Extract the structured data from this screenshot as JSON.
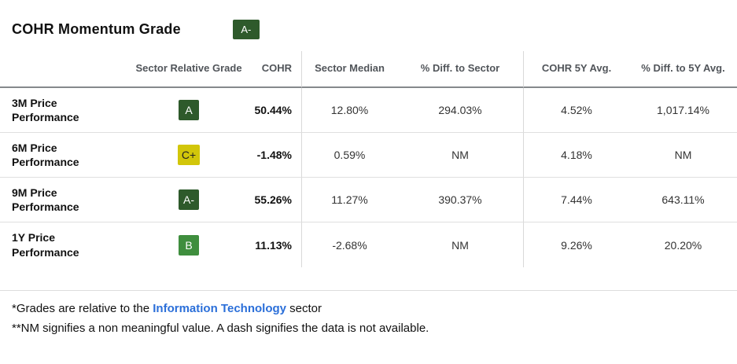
{
  "header": {
    "title": "COHR Momentum Grade",
    "overall_grade": "A-",
    "overall_grade_style": "background:#2e5a2b;color:#ffffff"
  },
  "table": {
    "headers": {
      "sector_relative_grade": "Sector Relative Grade",
      "cohr": "COHR",
      "sector_median": "Sector Median",
      "diff_to_sector": "% Diff. to Sector",
      "cohr_5y_avg": "COHR 5Y Avg.",
      "diff_to_5y_avg": "% Diff. to 5Y Avg."
    },
    "rows": [
      {
        "label": "3M Price Performance",
        "grade": "A",
        "grade_style": "background:#2e5a2b;color:#ffffff",
        "cohr": "50.44%",
        "sector_median": "12.80%",
        "diff_to_sector": "294.03%",
        "cohr_5y_avg": "4.52%",
        "diff_to_5y_avg": "1,017.14%"
      },
      {
        "label": "6M Price Performance",
        "grade": "C+",
        "grade_style": "background:#d2c60a;color:#222222",
        "cohr": "-1.48%",
        "sector_median": "0.59%",
        "diff_to_sector": "NM",
        "cohr_5y_avg": "4.18%",
        "diff_to_5y_avg": "NM"
      },
      {
        "label": "9M Price Performance",
        "grade": "A-",
        "grade_style": "background:#2e5a2b;color:#ffffff",
        "cohr": "55.26%",
        "sector_median": "11.27%",
        "diff_to_sector": "390.37%",
        "cohr_5y_avg": "7.44%",
        "diff_to_5y_avg": "643.11%"
      },
      {
        "label": "1Y Price Performance",
        "grade": "B",
        "grade_style": "background:#3f8e3e;color:#ffffff",
        "cohr": "11.13%",
        "sector_median": "-2.68%",
        "diff_to_sector": "NM",
        "cohr_5y_avg": "9.26%",
        "diff_to_5y_avg": "20.20%"
      }
    ]
  },
  "footnotes": {
    "line1_prefix": "*Grades are relative to the ",
    "line1_link": "Information Technology",
    "line1_suffix": " sector",
    "line2": "**NM signifies a non meaningful value. A dash signifies the data is not available."
  },
  "colors": {
    "grade_a_bg": "#2e5a2b",
    "grade_b_bg": "#3f8e3e",
    "grade_c_bg": "#d2c60a",
    "link_blue": "#2b6fd9",
    "header_text": "#51555a",
    "header_border": "#85898c",
    "row_border": "#e0e0e0",
    "column_divider": "#d9d9d9"
  }
}
